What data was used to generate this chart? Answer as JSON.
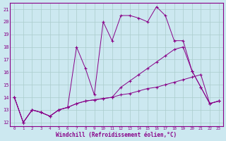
{
  "xlabel": "Windchill (Refroidissement éolien,°C)",
  "background_color": "#cce8f0",
  "grid_color": "#aacccc",
  "line_color": "#880088",
  "xlim": [
    -0.5,
    23.5
  ],
  "ylim": [
    11.7,
    21.5
  ],
  "yticks": [
    12,
    13,
    14,
    15,
    16,
    17,
    18,
    19,
    20,
    21
  ],
  "xticks": [
    0,
    1,
    2,
    3,
    4,
    5,
    6,
    7,
    8,
    9,
    10,
    11,
    12,
    13,
    14,
    15,
    16,
    17,
    18,
    19,
    20,
    21,
    22,
    23
  ],
  "line1_x": [
    0,
    1,
    2,
    3,
    4,
    5,
    6,
    7,
    8,
    9,
    10,
    11,
    12,
    13,
    14,
    15,
    16,
    17,
    18,
    19,
    20,
    21,
    22,
    23
  ],
  "line1_y": [
    14,
    12,
    13,
    12.8,
    12.5,
    13.0,
    13.2,
    13.5,
    13.7,
    13.8,
    13.9,
    14.0,
    14.2,
    14.3,
    14.5,
    14.7,
    14.8,
    15.0,
    15.2,
    15.4,
    15.6,
    15.8,
    13.5,
    13.7
  ],
  "line2_x": [
    0,
    1,
    2,
    3,
    4,
    5,
    6,
    7,
    8,
    9,
    10,
    11,
    12,
    13,
    14,
    15,
    16,
    17,
    18,
    19,
    20,
    21,
    22,
    23
  ],
  "line2_y": [
    14,
    12,
    13,
    12.8,
    12.5,
    13.0,
    13.2,
    18.0,
    16.3,
    14.2,
    20.0,
    18.5,
    20.5,
    20.5,
    20.3,
    20.0,
    21.2,
    20.5,
    18.5,
    18.5,
    16.1,
    14.8,
    13.5,
    13.7
  ],
  "line3_x": [
    0,
    1,
    2,
    3,
    4,
    5,
    6,
    7,
    8,
    9,
    10,
    11,
    12,
    13,
    14,
    15,
    16,
    17,
    18,
    19,
    20,
    21,
    22,
    23
  ],
  "line3_y": [
    14,
    12,
    13,
    12.8,
    12.5,
    13.0,
    13.2,
    13.5,
    13.7,
    13.8,
    13.9,
    14.0,
    14.8,
    15.3,
    15.8,
    16.3,
    16.8,
    17.3,
    17.8,
    18.0,
    16.1,
    14.8,
    13.5,
    13.7
  ]
}
